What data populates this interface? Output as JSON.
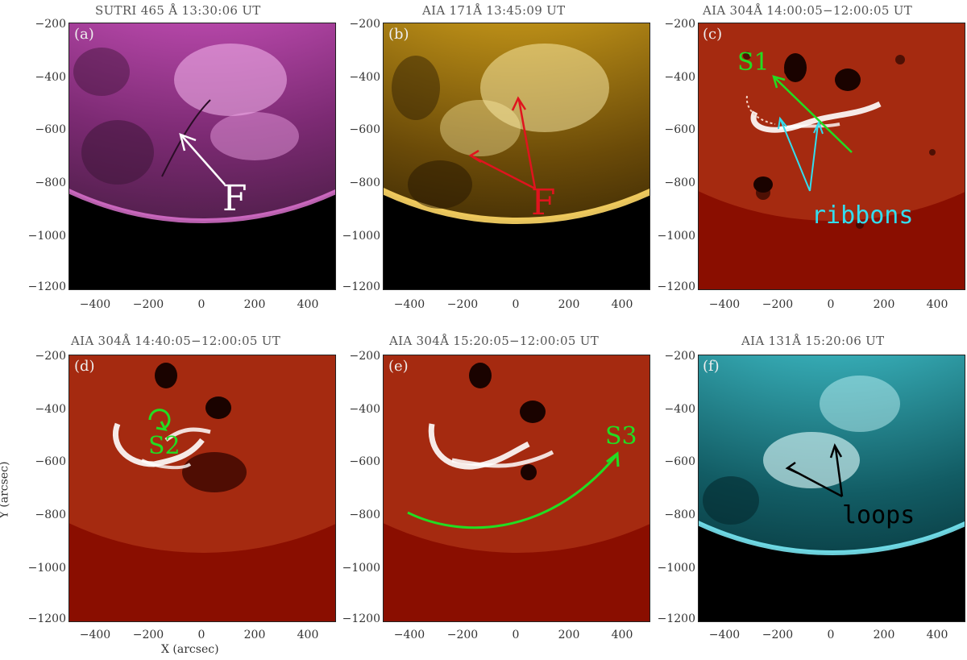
{
  "panels": [
    {
      "id": "a",
      "tag": "(a)",
      "title": "SUTRI 465 Å 13:30:06 UT",
      "theme": "magenta"
    },
    {
      "id": "b",
      "tag": "(b)",
      "title": "AIA 171Å 13:45:09 UT",
      "theme": "gold"
    },
    {
      "id": "c",
      "tag": "(c)",
      "title": "AIA 304Å 14:00:05−12:00:05 UT",
      "theme": "diff"
    },
    {
      "id": "d",
      "tag": "(d)",
      "title": "AIA 304Å 14:40:05−12:00:05 UT",
      "theme": "diff"
    },
    {
      "id": "e",
      "tag": "(e)",
      "title": "AIA 304Å 15:20:05−12:00:05 UT",
      "theme": "diff"
    },
    {
      "id": "f",
      "tag": "(f)",
      "title": "AIA 131Å 15:20:06 UT",
      "theme": "cyan"
    }
  ],
  "y_ticks": [
    "−200",
    "−400",
    "−600",
    "−800",
    "−1000",
    "−1200"
  ],
  "x_ticks": [
    "−400",
    "−200",
    "0",
    "200",
    "400"
  ],
  "axes": {
    "xlabel": "X (arcsec)",
    "ylabel": "Y (arcsec)"
  },
  "annotations": {
    "a_label": "F",
    "b_label": "F",
    "c_s1": "S1",
    "c_ribbons": "ribbons",
    "d_s2": "S2",
    "e_s3": "S3",
    "f_loops": "loops"
  },
  "colors": {
    "annotation_white": "#ffffff",
    "annotation_red": "#e0141e",
    "annotation_green": "#22dd22",
    "annotation_cyan": "#33ddee",
    "annotation_black": "#000000"
  }
}
